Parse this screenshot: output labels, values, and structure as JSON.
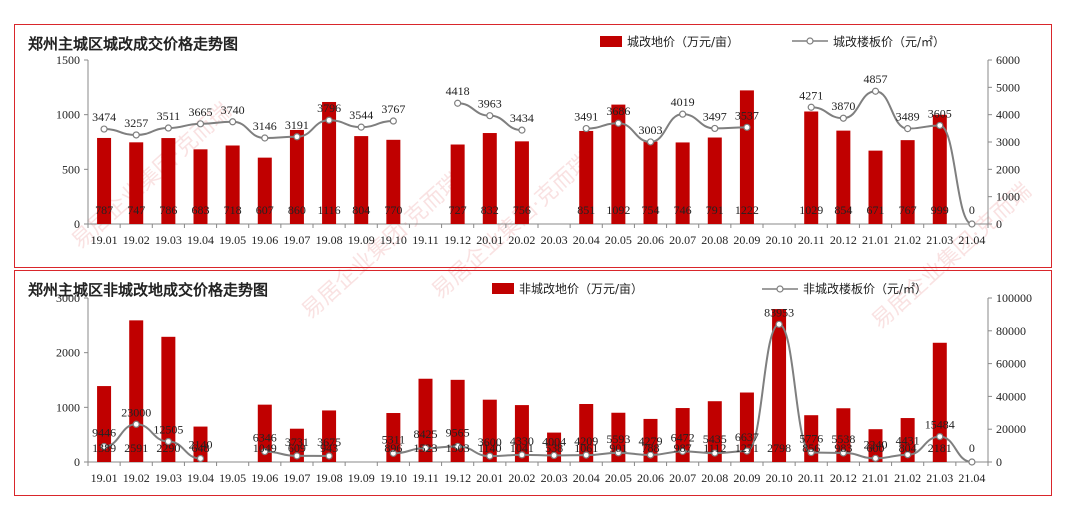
{
  "colors": {
    "bar": "#c00000",
    "line": "#7f7f7f",
    "frame": "#d9262b",
    "axis": "#888888"
  },
  "watermark": "易居企业集团·克而瑞",
  "chart_data": [
    {
      "type": "bar",
      "title": "郑州主城区城改成交价格走势图",
      "categories": [
        "19.01",
        "19.02",
        "19.03",
        "19.04",
        "19.05",
        "19.06",
        "19.07",
        "19.08",
        "19.09",
        "19.10",
        "19.11",
        "19.12",
        "20.01",
        "20.02",
        "20.03",
        "20.04",
        "20.05",
        "20.06",
        "20.07",
        "20.08",
        "20.09",
        "20.10",
        "20.11",
        "20.12",
        "21.01",
        "21.02",
        "21.03",
        "21.04"
      ],
      "ylim": [
        0,
        1500
      ],
      "yticks": [
        "0",
        "500",
        "1000",
        "1500"
      ],
      "y2lim": [
        0,
        6000
      ],
      "y2ticks": [
        "0",
        "1000",
        "2000",
        "3000",
        "4000",
        "5000",
        "6000"
      ],
      "legend": {
        "bar": "城改地价（万元/亩）",
        "line": "城改楼板价（元/㎡）"
      },
      "series": [
        {
          "name": "城改地价（万元/亩）",
          "type": "bar",
          "axis": "left",
          "values": [
            787,
            747,
            786,
            683,
            718,
            607,
            860,
            1116,
            804,
            770,
            null,
            727,
            832,
            756,
            null,
            851,
            1092,
            754,
            746,
            791,
            1222,
            null,
            1029,
            854,
            671,
            767,
            999,
            null
          ]
        },
        {
          "name": "城改楼板价（元/㎡）",
          "type": "line",
          "axis": "right",
          "values": [
            3474,
            3257,
            3511,
            3665,
            3740,
            3146,
            3191,
            3796,
            3544,
            3767,
            null,
            4418,
            3963,
            3434,
            null,
            3491,
            3686,
            3003,
            4019,
            3497,
            3537,
            null,
            4271,
            3870,
            4857,
            3489,
            3605,
            0
          ]
        }
      ]
    },
    {
      "type": "bar",
      "title": "郑州主城区非城改地成交价格走势图",
      "categories": [
        "19.01",
        "19.02",
        "19.03",
        "19.04",
        "19.05",
        "19.06",
        "19.07",
        "19.08",
        "19.09",
        "19.10",
        "19.11",
        "19.12",
        "20.01",
        "20.02",
        "20.03",
        "20.04",
        "20.05",
        "20.06",
        "20.07",
        "20.08",
        "20.09",
        "20.10",
        "20.11",
        "20.12",
        "21.01",
        "21.02",
        "21.03",
        "21.04"
      ],
      "ylim": [
        0,
        3000
      ],
      "yticks": [
        "0",
        "1000",
        "2000",
        "3000"
      ],
      "y2lim": [
        0,
        100000
      ],
      "y2ticks": [
        "0",
        "20000",
        "40000",
        "60000",
        "80000",
        "100000"
      ],
      "legend": {
        "bar": "非城改地价（万元/亩）",
        "line": "非城改楼板价（元/㎡）"
      },
      "series": [
        {
          "name": "非城改地价（万元/亩）",
          "type": "bar",
          "axis": "left",
          "values": [
            1389,
            2591,
            2290,
            648,
            null,
            1049,
            609,
            943,
            null,
            896,
            1523,
            1503,
            1140,
            1041,
            538,
            1061,
            901,
            788,
            987,
            1112,
            1271,
            2798,
            856,
            983,
            600,
            804,
            2181,
            null
          ]
        },
        {
          "name": "非城改楼板价（元/㎡）",
          "type": "line",
          "axis": "right",
          "values": [
            9446,
            23000,
            12505,
            2140,
            null,
            6346,
            3731,
            3675,
            null,
            5311,
            8425,
            9565,
            3600,
            4330,
            4004,
            4209,
            5593,
            4279,
            6472,
            5435,
            6637,
            83953,
            5776,
            5538,
            2240,
            4431,
            15484,
            0
          ]
        }
      ]
    }
  ]
}
